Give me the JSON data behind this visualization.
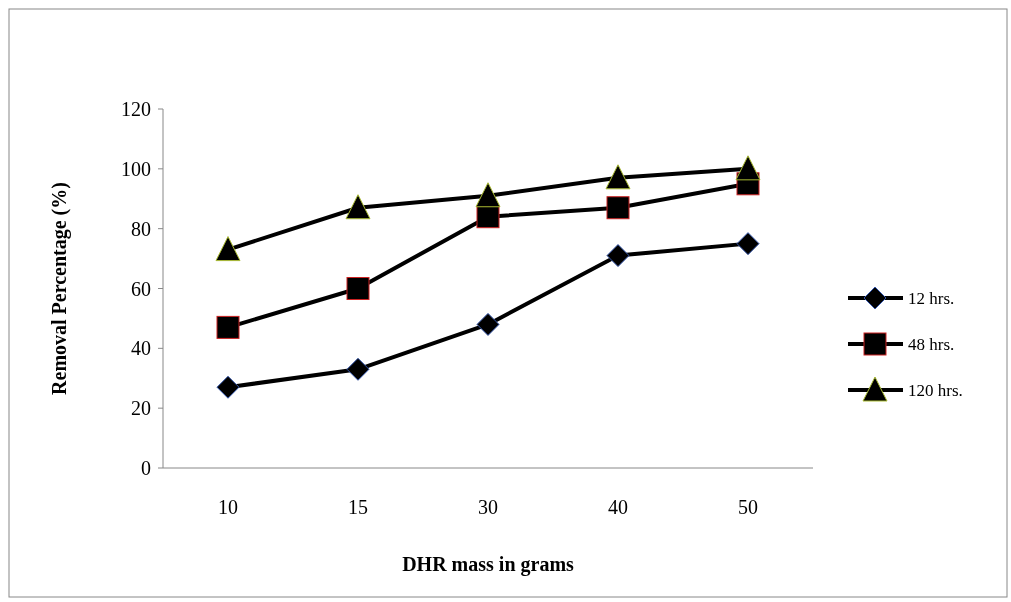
{
  "chart_data": {
    "type": "line",
    "xlabel": "DHR mass in grams",
    "ylabel": "Removal Percentage (%)",
    "categories": [
      "10",
      "15",
      "30",
      "40",
      "50"
    ],
    "ylim": [
      0,
      120
    ],
    "yticks": [
      0,
      20,
      40,
      60,
      80,
      100,
      120
    ],
    "grid": false,
    "legend": "right",
    "series": [
      {
        "name": "12 hrs.",
        "color": "#000000",
        "marker": "diamond",
        "values": [
          27,
          33,
          48,
          71,
          75
        ]
      },
      {
        "name": "48 hrs.",
        "color": "#000000",
        "marker": "square",
        "values": [
          47,
          60,
          84,
          87,
          95
        ]
      },
      {
        "name": "120 hrs.",
        "color": "#000000",
        "marker": "triangle",
        "values": [
          73,
          87,
          91,
          97,
          100
        ]
      }
    ]
  }
}
